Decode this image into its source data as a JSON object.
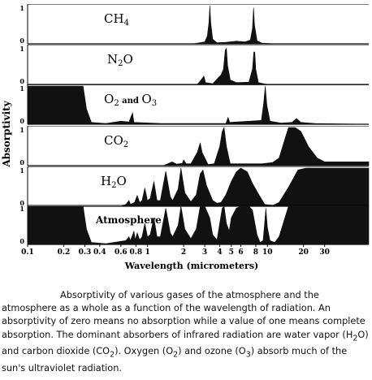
{
  "chart_data": {
    "type": "area",
    "xscale": "log",
    "xlim": [
      0.1,
      70
    ],
    "ylim": [
      0,
      1
    ],
    "xlabel": "Wavelength (micrometers)",
    "ylabel": "Absorptivity",
    "xticks": [
      {
        "v": 0.1,
        "label": "0.1"
      },
      {
        "v": 0.2,
        "label": "0.2"
      },
      {
        "v": 0.3,
        "label": "0.3"
      },
      {
        "v": 0.4,
        "label": "0.4"
      },
      {
        "v": 0.6,
        "label": "0.6"
      },
      {
        "v": 0.8,
        "label": "0.8"
      },
      {
        "v": 1,
        "label": "1"
      },
      {
        "v": 2,
        "label": "2"
      },
      {
        "v": 3,
        "label": "3"
      },
      {
        "v": 4,
        "label": "4"
      },
      {
        "v": 5,
        "label": "5"
      },
      {
        "v": 6,
        "label": "6"
      },
      {
        "v": 8,
        "label": "8"
      },
      {
        "v": 10,
        "label": "10"
      },
      {
        "v": 20,
        "label": "20"
      },
      {
        "v": 30,
        "label": "30"
      }
    ],
    "panels": [
      {
        "label_parts": [
          {
            "t": "CH"
          },
          {
            "t": "4",
            "sub": true
          }
        ],
        "style": "large",
        "ytick_top": "1",
        "ytick_bottom": "0",
        "points": [
          [
            0.1,
            0
          ],
          [
            2.1,
            0
          ],
          [
            2.5,
            0.01
          ],
          [
            3.0,
            0.05
          ],
          [
            3.15,
            0.2
          ],
          [
            3.25,
            0.55
          ],
          [
            3.31,
            1.0
          ],
          [
            3.37,
            0.55
          ],
          [
            3.5,
            0.12
          ],
          [
            3.8,
            0.03
          ],
          [
            4.5,
            0.04
          ],
          [
            5.5,
            0.07
          ],
          [
            6.5,
            0.05
          ],
          [
            7.2,
            0.1
          ],
          [
            7.5,
            0.4
          ],
          [
            7.66,
            0.95
          ],
          [
            7.8,
            0.5
          ],
          [
            8.2,
            0.08
          ],
          [
            9,
            0.02
          ],
          [
            12,
            0
          ],
          [
            70,
            0
          ]
        ]
      },
      {
        "label_parts": [
          {
            "t": "N"
          },
          {
            "t": "2",
            "sub": true
          },
          {
            "t": "O"
          }
        ],
        "style": "large",
        "ytick_top": "1",
        "ytick_bottom": "0",
        "points": [
          [
            0.1,
            0
          ],
          [
            2.6,
            0
          ],
          [
            2.8,
            0.12
          ],
          [
            2.95,
            0.22
          ],
          [
            3.05,
            0.05
          ],
          [
            3.5,
            0.02
          ],
          [
            3.9,
            0.18
          ],
          [
            4.1,
            0.25
          ],
          [
            4.3,
            0.4
          ],
          [
            4.45,
            0.9
          ],
          [
            4.55,
            0.95
          ],
          [
            4.65,
            0.5
          ],
          [
            4.9,
            0.12
          ],
          [
            5.5,
            0.05
          ],
          [
            7.0,
            0.06
          ],
          [
            7.5,
            0.4
          ],
          [
            7.7,
            0.85
          ],
          [
            7.85,
            0.85
          ],
          [
            8.0,
            0.4
          ],
          [
            8.4,
            0.05
          ],
          [
            10,
            0
          ],
          [
            70,
            0
          ]
        ]
      },
      {
        "label_parts": [
          {
            "t": "O"
          },
          {
            "t": "2",
            "sub": true
          },
          {
            "t": " and ",
            "small": true
          },
          {
            "t": "O"
          },
          {
            "t": "3",
            "sub": true
          }
        ],
        "style": "large",
        "ytick_top": "1",
        "ytick_bottom": "0",
        "points": [
          [
            0.1,
            1
          ],
          [
            0.29,
            1
          ],
          [
            0.31,
            0.4
          ],
          [
            0.34,
            0.05
          ],
          [
            0.45,
            0.02
          ],
          [
            0.6,
            0.08
          ],
          [
            0.7,
            0.06
          ],
          [
            0.75,
            0.3
          ],
          [
            0.77,
            0.05
          ],
          [
            1.3,
            0.02
          ],
          [
            4.5,
            0.02
          ],
          [
            4.7,
            0.18
          ],
          [
            4.85,
            0.05
          ],
          [
            8.9,
            0.1
          ],
          [
            9.3,
            0.55
          ],
          [
            9.6,
            1.0
          ],
          [
            9.9,
            0.5
          ],
          [
            10.5,
            0.08
          ],
          [
            13,
            0.03
          ],
          [
            16,
            0.05
          ],
          [
            17.5,
            0.15
          ],
          [
            19,
            0.05
          ],
          [
            25,
            0.02
          ],
          [
            70,
            0
          ]
        ]
      },
      {
        "label_parts": [
          {
            "t": "CO"
          },
          {
            "t": "2",
            "sub": true
          }
        ],
        "style": "large",
        "ytick_top": "1",
        "ytick_bottom": "0",
        "points": [
          [
            0.1,
            0
          ],
          [
            1.35,
            0
          ],
          [
            1.45,
            0.04
          ],
          [
            1.6,
            0.1
          ],
          [
            1.75,
            0.04
          ],
          [
            1.95,
            0.06
          ],
          [
            2.0,
            0.15
          ],
          [
            2.1,
            0.05
          ],
          [
            2.3,
            0.05
          ],
          [
            2.6,
            0.35
          ],
          [
            2.75,
            0.6
          ],
          [
            2.85,
            0.35
          ],
          [
            3.2,
            0.03
          ],
          [
            3.6,
            0.05
          ],
          [
            4.0,
            0.5
          ],
          [
            4.2,
            0.9
          ],
          [
            4.35,
            1.0
          ],
          [
            4.55,
            0.5
          ],
          [
            4.9,
            0.05
          ],
          [
            9,
            0.05
          ],
          [
            11,
            0.08
          ],
          [
            12.5,
            0.2
          ],
          [
            14,
            0.7
          ],
          [
            15,
            1.0
          ],
          [
            17,
            1.0
          ],
          [
            19,
            0.9
          ],
          [
            22,
            0.5
          ],
          [
            26,
            0.2
          ],
          [
            30,
            0.1
          ],
          [
            70,
            0.1
          ]
        ]
      },
      {
        "label_parts": [
          {
            "t": "H"
          },
          {
            "t": "2",
            "sub": true
          },
          {
            "t": "O"
          }
        ],
        "style": "large",
        "ytick_top": "1",
        "ytick_bottom": "0",
        "points": [
          [
            0.1,
            0
          ],
          [
            0.6,
            0
          ],
          [
            0.66,
            0.05
          ],
          [
            0.7,
            0.15
          ],
          [
            0.72,
            0.05
          ],
          [
            0.78,
            0.1
          ],
          [
            0.82,
            0.28
          ],
          [
            0.86,
            0.1
          ],
          [
            0.9,
            0.15
          ],
          [
            0.95,
            0.48
          ],
          [
            1.0,
            0.15
          ],
          [
            1.05,
            0.2
          ],
          [
            1.13,
            0.65
          ],
          [
            1.2,
            0.15
          ],
          [
            1.28,
            0.15
          ],
          [
            1.42,
            0.92
          ],
          [
            1.55,
            0.25
          ],
          [
            1.62,
            0.15
          ],
          [
            1.8,
            0.45
          ],
          [
            1.9,
            1.0
          ],
          [
            2.05,
            0.35
          ],
          [
            2.3,
            0.12
          ],
          [
            2.55,
            0.3
          ],
          [
            2.75,
            0.85
          ],
          [
            2.9,
            0.95
          ],
          [
            3.1,
            0.55
          ],
          [
            3.5,
            0.15
          ],
          [
            3.8,
            0.08
          ],
          [
            4.1,
            0.1
          ],
          [
            4.5,
            0.3
          ],
          [
            5.0,
            0.65
          ],
          [
            5.5,
            0.9
          ],
          [
            6.0,
            1.0
          ],
          [
            6.8,
            0.9
          ],
          [
            7.5,
            0.6
          ],
          [
            8.5,
            0.3
          ],
          [
            9.5,
            0.05
          ],
          [
            11,
            0.02
          ],
          [
            12.5,
            0.1
          ],
          [
            15,
            0.5
          ],
          [
            18,
            0.95
          ],
          [
            21,
            1.0
          ],
          [
            70,
            1.0
          ]
        ]
      },
      {
        "label_parts": [
          {
            "t": "Atmosphere"
          }
        ],
        "style": "small",
        "ytick_top": "1",
        "ytick_bottom": "0",
        "points": [
          [
            0.1,
            1
          ],
          [
            0.29,
            1
          ],
          [
            0.31,
            0.4
          ],
          [
            0.34,
            0.05
          ],
          [
            0.45,
            0.02
          ],
          [
            0.6,
            0.08
          ],
          [
            0.66,
            0.1
          ],
          [
            0.7,
            0.2
          ],
          [
            0.72,
            0.1
          ],
          [
            0.77,
            0.35
          ],
          [
            0.79,
            0.12
          ],
          [
            0.82,
            0.3
          ],
          [
            0.86,
            0.12
          ],
          [
            0.9,
            0.2
          ],
          [
            0.95,
            0.55
          ],
          [
            1.0,
            0.2
          ],
          [
            1.05,
            0.25
          ],
          [
            1.13,
            0.7
          ],
          [
            1.2,
            0.2
          ],
          [
            1.28,
            0.2
          ],
          [
            1.42,
            0.95
          ],
          [
            1.55,
            0.3
          ],
          [
            1.62,
            0.2
          ],
          [
            1.8,
            0.5
          ],
          [
            1.9,
            1.0
          ],
          [
            2.05,
            0.4
          ],
          [
            2.3,
            0.15
          ],
          [
            2.55,
            0.4
          ],
          [
            2.75,
            1.0
          ],
          [
            3.0,
            1.0
          ],
          [
            3.3,
            0.7
          ],
          [
            3.5,
            0.25
          ],
          [
            3.8,
            0.12
          ],
          [
            4.0,
            0.55
          ],
          [
            4.2,
            0.95
          ],
          [
            4.35,
            1.0
          ],
          [
            4.55,
            0.55
          ],
          [
            4.8,
            0.35
          ],
          [
            5.0,
            0.7
          ],
          [
            5.5,
            0.95
          ],
          [
            6.0,
            1.0
          ],
          [
            7.0,
            1.0
          ],
          [
            7.5,
            0.9
          ],
          [
            8.2,
            0.25
          ],
          [
            8.7,
            0.05
          ],
          [
            9.2,
            0.1
          ],
          [
            9.5,
            0.6
          ],
          [
            9.7,
            0.95
          ],
          [
            10.0,
            0.45
          ],
          [
            10.5,
            0.1
          ],
          [
            11.5,
            0.05
          ],
          [
            12.5,
            0.2
          ],
          [
            14,
            0.7
          ],
          [
            15,
            1.0
          ],
          [
            70,
            1.0
          ]
        ]
      }
    ]
  },
  "caption": {
    "parts": [
      "Absorptivity of various gases of the atmosphere and the atmosphere as a whole as a function of the wavelength of radiation. An absorptivity of zero means no absorption while a value of one means complete absorption. The dominant absorbers of infrared radiation are water vapor (H",
      {
        "sub": "2"
      },
      "O) and carbon dioxide (CO",
      {
        "sub": "2"
      },
      "). Oxygen (O",
      {
        "sub": "2"
      },
      ") and ozone (O",
      {
        "sub": "3"
      },
      ") absorb much of the sun's ultraviolet radiation."
    ]
  }
}
